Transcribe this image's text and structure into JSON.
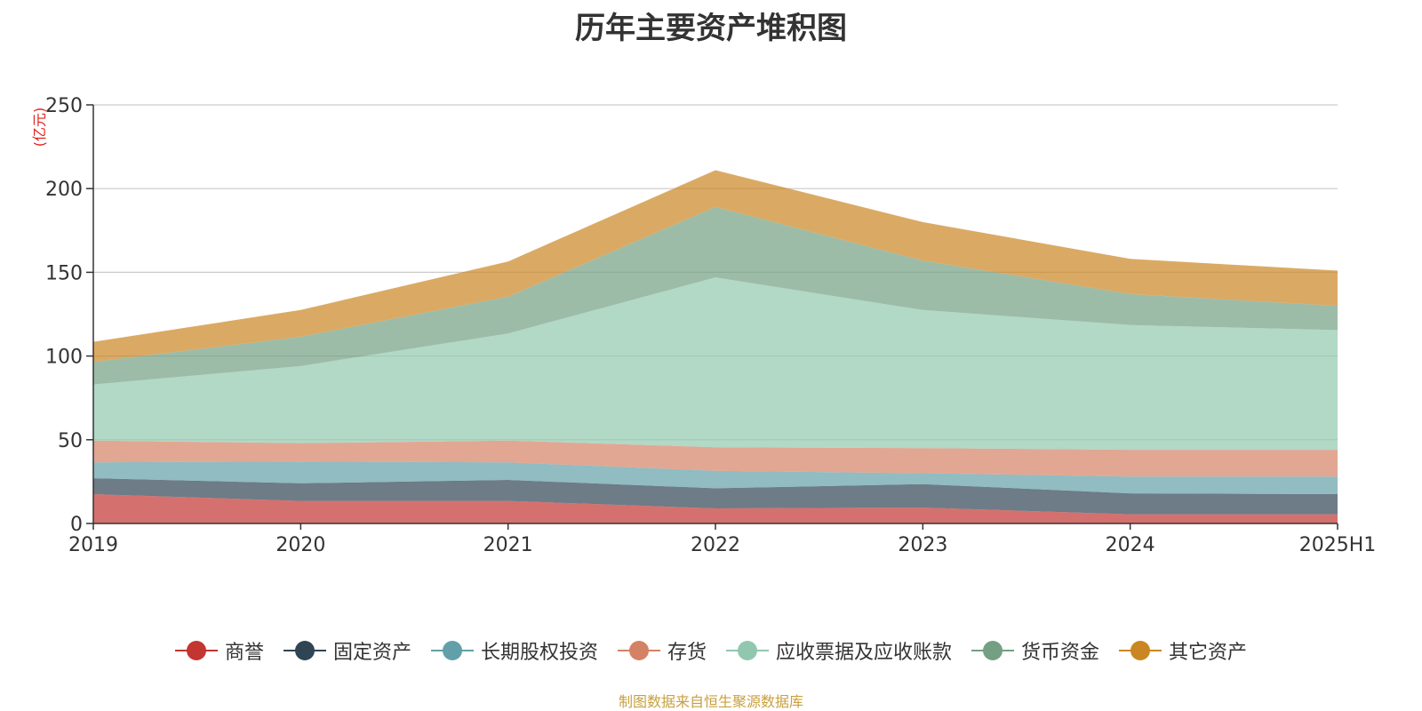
{
  "chart_data": {
    "type": "area",
    "stacked": true,
    "title": "历年主要资产堆积图",
    "unit_label": "(亿元)",
    "x": [
      "2019",
      "2020",
      "2021",
      "2022",
      "2023",
      "2024",
      "2025H1"
    ],
    "ylim": [
      0,
      250
    ],
    "yticks": [
      0,
      50,
      100,
      150,
      200,
      250
    ],
    "grid": true,
    "legend_position": "bottom",
    "series": [
      {
        "name": "商誉",
        "color": "#c23531",
        "values": [
          17.5,
          13.5,
          13.5,
          9,
          9.5,
          5.5,
          5.5
        ]
      },
      {
        "name": "固定资产",
        "color": "#2f4554",
        "values": [
          9.5,
          10.5,
          12.5,
          12,
          14,
          12.5,
          12
        ]
      },
      {
        "name": "长期股权投资",
        "color": "#61a0a8",
        "values": [
          9.5,
          13,
          10.5,
          10.5,
          6.5,
          10,
          10.5
        ]
      },
      {
        "name": "存货",
        "color": "#d48265",
        "values": [
          13,
          11,
          13,
          14,
          15,
          16,
          16
        ]
      },
      {
        "name": "应收票据及应收账款",
        "color": "#91c7ae",
        "values": [
          33.5,
          46,
          64,
          101.5,
          82.5,
          74.5,
          71.5
        ]
      },
      {
        "name": "货币资金",
        "color": "#749f83",
        "values": [
          13.5,
          17.5,
          22,
          42,
          29.5,
          18.5,
          14.5
        ]
      },
      {
        "name": "其它资产",
        "color": "#ca8622",
        "values": [
          12,
          16,
          21,
          22,
          23,
          21,
          21
        ]
      }
    ]
  },
  "source_note": "制图数据来自恒生聚源数据库"
}
